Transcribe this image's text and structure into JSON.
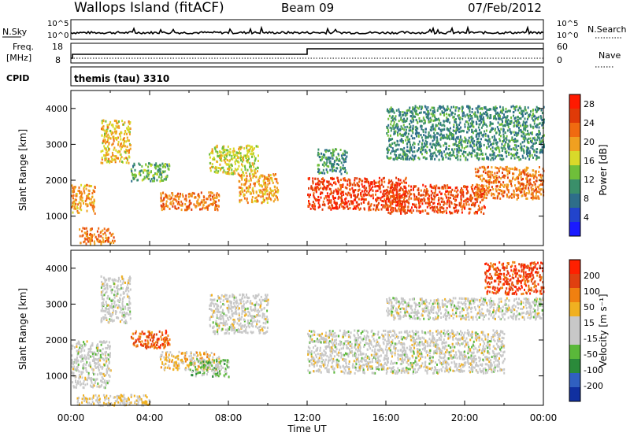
{
  "header": {
    "station": "Wallops Island (fitACF)",
    "beam": "Beam 09",
    "date": "07/Feb/2012"
  },
  "top_panels": {
    "nsky_label": "N.Sky",
    "nsky_ticks": [
      "10^5",
      "10^0"
    ],
    "nsearch_label": "N.Search",
    "nsearch_ticks": [
      "10^5",
      "10^0"
    ],
    "freq_label_1": "Freq.",
    "freq_label_2": "[MHz]",
    "freq_ticks": [
      "18",
      "8"
    ],
    "nave_label": "Nave",
    "nave_ticks": [
      "60",
      "0"
    ],
    "cpid_label": "CPID",
    "cpid_text": "themis (tau) 3310",
    "freq_step_hour": 12
  },
  "colors": {
    "power_scale": [
      "#1a1aff",
      "#2244cc",
      "#2e6e8a",
      "#3a8f6a",
      "#6fbf3a",
      "#d9d92a",
      "#f0a020",
      "#f06a10",
      "#e03a08",
      "#ff1a00"
    ],
    "velocity_scale": [
      "#1030a0",
      "#3060c0",
      "#2a8a3a",
      "#5ab83a",
      "#c8c8c8",
      "#c8c8c8",
      "#f0b020",
      "#f08010",
      "#e04010",
      "#ff2000"
    ]
  },
  "chart_data": [
    {
      "type": "heatmap",
      "name": "power",
      "ylabel": "Slant Range [km]",
      "xlabel": "",
      "xlim": [
        0,
        24
      ],
      "ylim": [
        180,
        4500
      ],
      "ytick_labels": [
        "1000",
        "2000",
        "3000",
        "4000"
      ],
      "colorbar_label": "Power [dB]",
      "colorbar_ticks": [
        "4",
        "8",
        "12",
        "16",
        "20",
        "24",
        "28"
      ],
      "clim": [
        0,
        30
      ],
      "regions": [
        {
          "t0": 0.0,
          "t1": 1.2,
          "r0": 1100,
          "r1": 1900,
          "level": 20
        },
        {
          "t0": 0.4,
          "t1": 2.2,
          "r0": 250,
          "r1": 700,
          "level": 22
        },
        {
          "t0": 1.5,
          "t1": 3.0,
          "r0": 2500,
          "r1": 3700,
          "level": 18
        },
        {
          "t0": 3.0,
          "t1": 5.0,
          "r0": 2000,
          "r1": 2500,
          "level": 12
        },
        {
          "t0": 4.5,
          "t1": 7.5,
          "r0": 1200,
          "r1": 1700,
          "level": 22
        },
        {
          "t0": 7.0,
          "t1": 9.5,
          "r0": 2200,
          "r1": 3000,
          "level": 16
        },
        {
          "t0": 8.5,
          "t1": 10.5,
          "r0": 1400,
          "r1": 2200,
          "level": 20
        },
        {
          "t0": 12.0,
          "t1": 17.0,
          "r0": 1200,
          "r1": 2100,
          "level": 26
        },
        {
          "t0": 16.0,
          "t1": 21.0,
          "r0": 1100,
          "r1": 1900,
          "level": 25
        },
        {
          "t0": 20.5,
          "t1": 24.0,
          "r0": 1500,
          "r1": 2400,
          "level": 22
        },
        {
          "t0": 16.0,
          "t1": 24.0,
          "r0": 2600,
          "r1": 4100,
          "level": 10
        },
        {
          "t0": 12.5,
          "t1": 14.0,
          "r0": 2200,
          "r1": 2900,
          "level": 10
        }
      ]
    },
    {
      "type": "heatmap",
      "name": "velocity",
      "ylabel": "Slant Range [km]",
      "xlabel": "Time UT",
      "xlim": [
        0,
        24
      ],
      "ylim": [
        180,
        4500
      ],
      "xtick_labels": [
        "00:00",
        "04:00",
        "08:00",
        "12:00",
        "16:00",
        "20:00",
        "00:00"
      ],
      "ytick_labels": [
        "1000",
        "2000",
        "3000",
        "4000"
      ],
      "colorbar_label": "Velocity [m s⁻¹]",
      "colorbar_ticks": [
        "200",
        "100",
        "50",
        "15",
        "-15",
        "-50",
        "-100",
        "-200"
      ],
      "clim": [
        -250,
        250
      ],
      "regions": [
        {
          "t0": 0.0,
          "t1": 2.0,
          "r0": 700,
          "r1": 2000,
          "level": 0
        },
        {
          "t0": 1.5,
          "t1": 3.0,
          "r0": 2500,
          "r1": 3800,
          "level": 0
        },
        {
          "t0": 3.0,
          "t1": 5.0,
          "r0": 1800,
          "r1": 2300,
          "level": 160
        },
        {
          "t0": 4.5,
          "t1": 7.5,
          "r0": 1200,
          "r1": 1700,
          "level": 60
        },
        {
          "t0": 6.0,
          "t1": 8.0,
          "r0": 1000,
          "r1": 1500,
          "level": -60
        },
        {
          "t0": 7.0,
          "t1": 10.0,
          "r0": 2200,
          "r1": 3300,
          "level": 0
        },
        {
          "t0": 12.0,
          "t1": 22.0,
          "r0": 1100,
          "r1": 2300,
          "level": 0
        },
        {
          "t0": 16.0,
          "t1": 24.0,
          "r0": 2600,
          "r1": 3200,
          "level": 0
        },
        {
          "t0": 21.0,
          "t1": 24.0,
          "r0": 3300,
          "r1": 4200,
          "level": 180
        },
        {
          "t0": 0.3,
          "t1": 4.0,
          "r0": 200,
          "r1": 500,
          "level": 40
        }
      ]
    }
  ]
}
